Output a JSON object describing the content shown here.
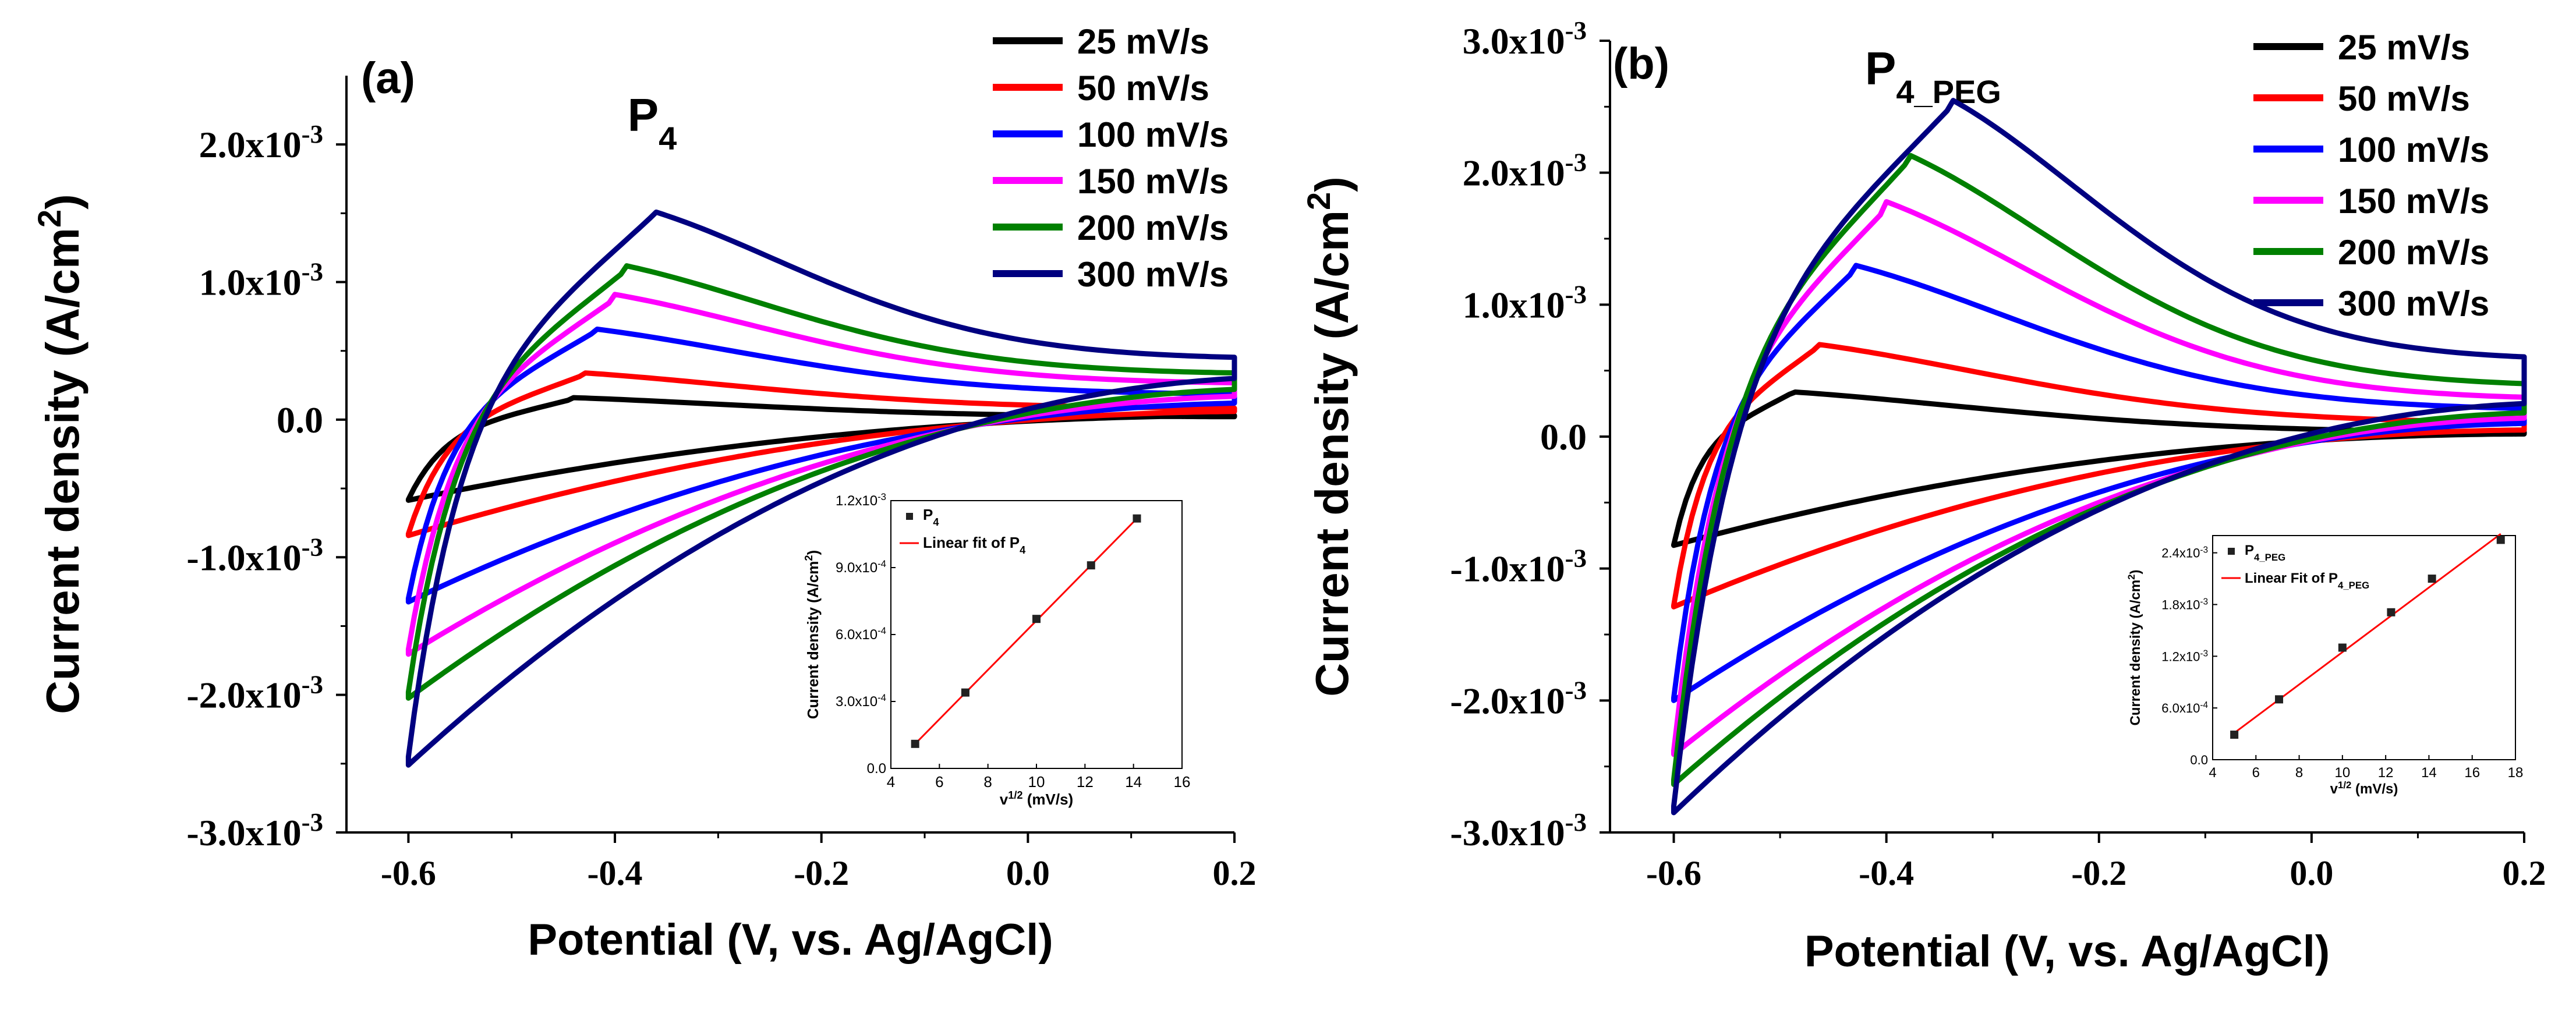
{
  "colors": {
    "25 mV/s": "#000000",
    "50 mV/s": "#ff0000",
    "100 mV/s": "#0000ff",
    "150 mV/s": "#ff00ff",
    "200 mV/s": "#008000",
    "300 mV/s": "#000080"
  },
  "chart_data": [
    {
      "type": "line",
      "panel_label": "(a)",
      "title": "P",
      "title_sub": "4",
      "xlabel": "Potential (V, vs. Ag/AgCl)",
      "ylabel": "Current density (A/cm",
      "ylabel_sup": "2",
      "ylabel_end": ")",
      "xlim": [
        -0.66,
        0.2
      ],
      "ylim": [
        -0.003,
        0.0025
      ],
      "x_ticks": [
        -0.6,
        -0.4,
        -0.2,
        0.0,
        0.2
      ],
      "x_tick_labels": [
        "-0.6",
        "-0.4",
        "-0.2",
        "0.0",
        "0.2"
      ],
      "y_ticks": [
        -0.003,
        -0.002,
        -0.001,
        0.0,
        0.001,
        0.002
      ],
      "y_tick_labels": [
        {
          "base": "-3.0x10",
          "exp": "-3"
        },
        {
          "base": "-2.0x10",
          "exp": "-3"
        },
        {
          "base": "-1.0x10",
          "exp": "-3"
        },
        {
          "base": "0.0",
          "exp": ""
        },
        {
          "base": "1.0x10",
          "exp": "-3"
        },
        {
          "base": "2.0x10",
          "exp": "-3"
        }
      ],
      "legend": [
        "25 mV/s",
        "50 mV/s",
        "100 mV/s",
        "150 mV/s",
        "200 mV/s",
        "300 mV/s"
      ],
      "legend_position": "top-right",
      "series": [
        {
          "name": "25 mV/s",
          "peak_potential": -0.44,
          "peak_current": 0.00016,
          "start_current": -0.00058,
          "end_anodic": 2e-05,
          "end_cathodic": 3e-05
        },
        {
          "name": "50 mV/s",
          "peak_potential": -0.43,
          "peak_current": 0.00034,
          "start_current": -0.00083,
          "end_anodic": 8e-05,
          "end_cathodic": 6e-05
        },
        {
          "name": "100 mV/s",
          "peak_potential": -0.42,
          "peak_current": 0.00066,
          "start_current": -0.0013,
          "end_anodic": 0.00018,
          "end_cathodic": 0.00012
        },
        {
          "name": "150 mV/s",
          "peak_potential": -0.4,
          "peak_current": 0.00091,
          "start_current": -0.00167,
          "end_anodic": 0.00026,
          "end_cathodic": 0.00017
        },
        {
          "name": "200 mV/s",
          "peak_potential": -0.39,
          "peak_current": 0.00112,
          "start_current": -0.00198,
          "end_anodic": 0.00033,
          "end_cathodic": 0.00022
        },
        {
          "name": "300 mV/s",
          "peak_potential": -0.365,
          "peak_current": 0.00152,
          "start_current": -0.00245,
          "end_anodic": 0.00044,
          "end_cathodic": 0.0003
        }
      ],
      "inset": {
        "type": "scatter",
        "xlabel": "v",
        "xlabel_sup": "1/2",
        "xlabel_end": " (mV/s)",
        "ylabel": "Current density (A/cm",
        "ylabel_sup": "2",
        "ylabel_end": ")",
        "xlim": [
          4,
          16
        ],
        "ylim": [
          0.0,
          0.0012
        ],
        "x_ticks": [
          4,
          6,
          8,
          10,
          12,
          14,
          16
        ],
        "x_tick_labels": [
          "4",
          "6",
          "8",
          "10",
          "12",
          "14",
          "16"
        ],
        "y_ticks": [
          0.0,
          0.0003,
          0.0006,
          0.0009,
          0.0012
        ],
        "y_tick_labels": [
          {
            "base": "0.0",
            "exp": ""
          },
          {
            "base": "3.0x10",
            "exp": "-4"
          },
          {
            "base": "6.0x10",
            "exp": "-4"
          },
          {
            "base": "9.0x10",
            "exp": "-4"
          },
          {
            "base": "1.2x10",
            "exp": "-3"
          }
        ],
        "points_x": [
          5.0,
          7.07,
          10.0,
          12.25,
          14.14
        ],
        "points_y": [
          0.00011,
          0.00034,
          0.00067,
          0.00091,
          0.00112
        ],
        "fit": {
          "x": [
            5.0,
            14.14
          ],
          "y": [
            0.00011,
            0.00112
          ]
        },
        "legend": [
          {
            "label": "P",
            "sub": "4"
          },
          {
            "label": "Linear fit of P",
            "sub": "4"
          }
        ]
      }
    },
    {
      "type": "line",
      "panel_label": "(b)",
      "title": "P",
      "title_sub": "4_PEG",
      "xlabel": "Potential (V, vs. Ag/AgCl)",
      "ylabel": "Current density (A/cm",
      "ylabel_sup": "2",
      "ylabel_end": ")",
      "xlim": [
        -0.66,
        0.2
      ],
      "ylim": [
        -0.003,
        0.003
      ],
      "x_ticks": [
        -0.6,
        -0.4,
        -0.2,
        0.0,
        0.2
      ],
      "x_tick_labels": [
        "-0.6",
        "-0.4",
        "-0.2",
        "0.0",
        "0.2"
      ],
      "y_ticks": [
        -0.003,
        -0.002,
        -0.001,
        0.0,
        0.001,
        0.002,
        0.003
      ],
      "y_tick_labels": [
        {
          "base": "-3.0x10",
          "exp": "-3"
        },
        {
          "base": "-2.0x10",
          "exp": "-3"
        },
        {
          "base": "-1.0x10",
          "exp": "-3"
        },
        {
          "base": "0.0",
          "exp": ""
        },
        {
          "base": "1.0x10",
          "exp": "-3"
        },
        {
          "base": "2.0x10",
          "exp": "-3"
        },
        {
          "base": "3.0x10",
          "exp": "-3"
        }
      ],
      "legend": [
        "25 mV/s",
        "50 mV/s",
        "100 mV/s",
        "150 mV/s",
        "200 mV/s",
        "300 mV/s"
      ],
      "legend_position": "top-right",
      "series": [
        {
          "name": "25 mV/s",
          "peak_potential": -0.49,
          "peak_current": 0.00034,
          "start_current": -0.00082,
          "end_anodic": 3e-05,
          "end_cathodic": 2e-05
        },
        {
          "name": "50 mV/s",
          "peak_potential": -0.465,
          "peak_current": 0.0007,
          "start_current": -0.00128,
          "end_anodic": 0.0001,
          "end_cathodic": 5e-05
        },
        {
          "name": "100 mV/s",
          "peak_potential": -0.43,
          "peak_current": 0.0013,
          "start_current": -0.00198,
          "end_anodic": 0.0002,
          "end_cathodic": 0.0001
        },
        {
          "name": "150 mV/s",
          "peak_potential": -0.4,
          "peak_current": 0.00178,
          "start_current": -0.00238,
          "end_anodic": 0.00028,
          "end_cathodic": 0.00014
        },
        {
          "name": "200 mV/s",
          "peak_potential": -0.38,
          "peak_current": 0.00214,
          "start_current": -0.0026,
          "end_anodic": 0.00038,
          "end_cathodic": 0.00018
        },
        {
          "name": "300 mV/s",
          "peak_potential": -0.34,
          "peak_current": 0.00256,
          "start_current": -0.0028,
          "end_anodic": 0.00058,
          "end_cathodic": 0.00025
        }
      ],
      "inset": {
        "type": "scatter",
        "xlabel": "v",
        "xlabel_sup": "1/2",
        "xlabel_end": " (mV/s)",
        "ylabel": "Current density (A/cm",
        "ylabel_sup": "2",
        "ylabel_end": ")",
        "xlim": [
          4,
          18
        ],
        "ylim": [
          0.0,
          0.0026
        ],
        "x_ticks": [
          4,
          6,
          8,
          10,
          12,
          14,
          16,
          18
        ],
        "x_tick_labels": [
          "4",
          "6",
          "8",
          "10",
          "12",
          "14",
          "16",
          "18"
        ],
        "y_ticks": [
          0.0,
          0.0006,
          0.0012,
          0.0018,
          0.0024
        ],
        "y_tick_labels": [
          {
            "base": "0.0",
            "exp": ""
          },
          {
            "base": "6.0x10",
            "exp": "-4"
          },
          {
            "base": "1.2x10",
            "exp": "-3"
          },
          {
            "base": "1.8x10",
            "exp": "-3"
          },
          {
            "base": "2.4x10",
            "exp": "-3"
          }
        ],
        "points_x": [
          5.0,
          7.07,
          10.0,
          12.25,
          14.14,
          17.32
        ],
        "points_y": [
          0.00029,
          0.0007,
          0.0013,
          0.00171,
          0.0021,
          0.00255
        ],
        "fit": {
          "x": [
            5.0,
            17.32
          ],
          "y": [
            0.00031,
            0.00262
          ]
        },
        "legend": [
          {
            "label": "P",
            "sub": "4_PEG"
          },
          {
            "label": "Linear Fit of P",
            "sub": "4_PEG"
          }
        ]
      }
    }
  ]
}
